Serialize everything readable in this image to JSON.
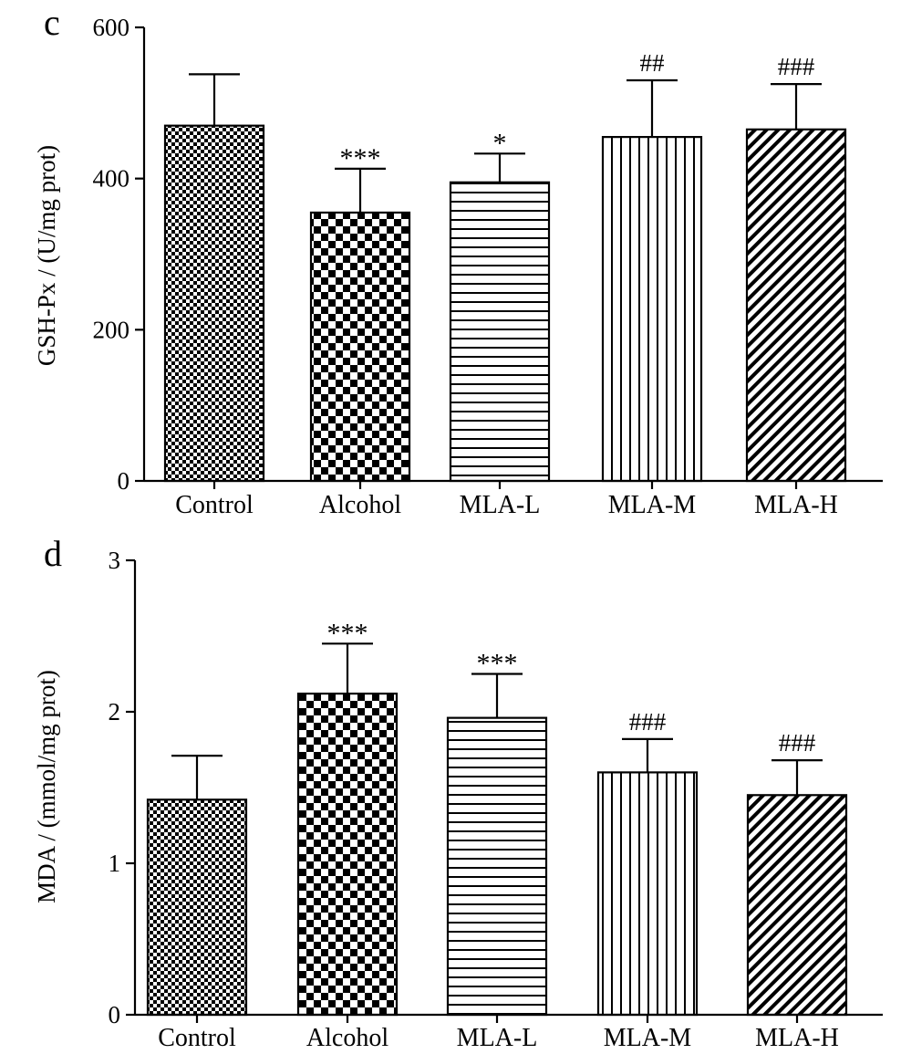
{
  "chart_data": [
    {
      "type": "bar",
      "panel_label": "c",
      "categories": [
        "Control",
        "Alcohol",
        "MLA-L",
        "MLA-M",
        "MLA-H"
      ],
      "values": [
        470,
        355,
        395,
        455,
        465
      ],
      "errors": [
        68,
        58,
        38,
        75,
        60
      ],
      "annotations": [
        "",
        "***",
        "*",
        "##",
        "###"
      ],
      "patterns": [
        "fine-check",
        "coarse-check",
        "horizontal-lines",
        "vertical-lines",
        "diagonal-lines"
      ],
      "ylabel": "GSH-Px / (U/mg prot)",
      "ylim": [
        0,
        600
      ],
      "yticks": [
        0,
        200,
        400,
        600
      ],
      "grid": false
    },
    {
      "type": "bar",
      "panel_label": "d",
      "categories": [
        "Control",
        "Alcohol",
        "MLA-L",
        "MLA-M",
        "MLA-H"
      ],
      "values": [
        1.42,
        2.12,
        1.96,
        1.6,
        1.45
      ],
      "errors": [
        0.29,
        0.33,
        0.29,
        0.22,
        0.23
      ],
      "annotations": [
        "",
        "***",
        "***",
        "###",
        "###"
      ],
      "patterns": [
        "fine-check",
        "coarse-check",
        "horizontal-lines",
        "vertical-lines",
        "diagonal-lines"
      ],
      "ylabel": "MDA / (mmol/mg prot)",
      "ylim": [
        0,
        3
      ],
      "yticks": [
        0,
        1,
        2,
        3
      ],
      "grid": false
    }
  ]
}
